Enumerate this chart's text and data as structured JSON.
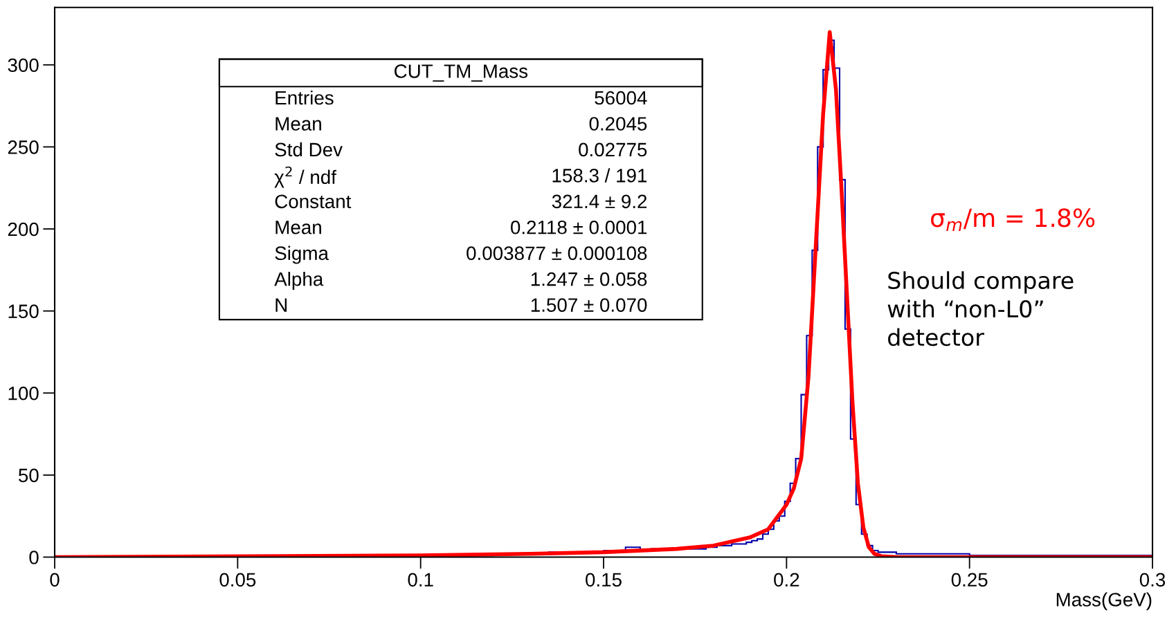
{
  "chart_data": {
    "type": "histogram",
    "xlabel": "Mass(GeV)",
    "xlim": [
      0,
      0.3
    ],
    "xticks": [
      0,
      0.05,
      0.1,
      0.15,
      0.2,
      0.25,
      0.3
    ],
    "ylim": [
      0,
      335
    ],
    "yticks": [
      0,
      50,
      100,
      150,
      200,
      250,
      300
    ],
    "grid": false,
    "legend": false,
    "color": "#0000aa",
    "bins": [
      0,
      0.06,
      0.1,
      0.12,
      0.135,
      0.15,
      0.156,
      0.16,
      0.163,
      0.168,
      0.178,
      0.181,
      0.185,
      0.1875,
      0.189,
      0.1905,
      0.192,
      0.1935,
      0.195,
      0.1965,
      0.198,
      0.1995,
      0.201,
      0.2025,
      0.204,
      0.2055,
      0.207,
      0.2085,
      0.21,
      0.2115,
      0.213,
      0.2145,
      0.216,
      0.2175,
      0.219,
      0.2205,
      0.222,
      0.2235,
      0.225,
      0.23,
      0.25,
      0.28,
      0.3
    ],
    "values": [
      0,
      1,
      1,
      2,
      3,
      4,
      6,
      4,
      5,
      5,
      6,
      7,
      8,
      8,
      9,
      10,
      11,
      14,
      17,
      22,
      25,
      34,
      45,
      60,
      99,
      135,
      187,
      250,
      297,
      315,
      298,
      230,
      139,
      72,
      32,
      14,
      7,
      4,
      3,
      2,
      1,
      1
    ],
    "series": [
      {
        "type": "line",
        "color": "#ff0000",
        "x": [
          0,
          0.1,
          0.13,
          0.15,
          0.17,
          0.18,
          0.19,
          0.195,
          0.2,
          0.202,
          0.204,
          0.206,
          0.208,
          0.21,
          0.2118,
          0.2135,
          0.215,
          0.2165,
          0.218,
          0.2195,
          0.221,
          0.2225,
          0.224,
          0.226,
          0.23,
          0.3
        ],
        "values": [
          0,
          1,
          2,
          3,
          5,
          7,
          12,
          17,
          32,
          42,
          60,
          110,
          190,
          270,
          320,
          285,
          225,
          160,
          95,
          45,
          18,
          6,
          2,
          0.5,
          0,
          0
        ]
      }
    ],
    "annotations": [
      "CUT_TM_Mass",
      "Entries",
      "56004",
      "Mean",
      "0.2045",
      "Std Dev",
      "0.02775",
      "χ$^{2}$ / ndf",
      "158.3 / 191",
      "Constant",
      "321.4 ± 9.2",
      "Mean",
      "0.2118 ± 0.0001",
      "Sigma",
      "0.003877 ± 0.000108",
      "Alpha",
      "1.247 ± 0.058",
      "N",
      "1.507 ± 0.070",
      "σ$_{m}$/m = 1.8%",
      "Should compare\nwith “non-L0”\ndetector"
    ]
  }
}
